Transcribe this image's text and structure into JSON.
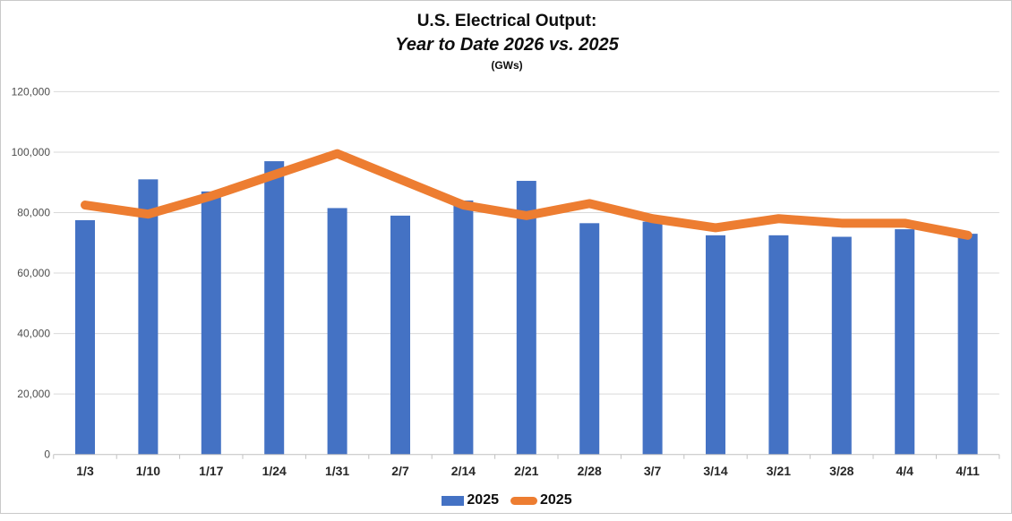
{
  "title": {
    "line1": "U.S. Electrical Output:",
    "line2": "Year to Date 2026 vs. 2025",
    "subtitle": "(GWs)"
  },
  "legend": {
    "items": [
      {
        "label": "2025",
        "swatch": "bar",
        "color": "#4472C4"
      },
      {
        "label": "2025",
        "swatch": "line",
        "color": "#ED7D31"
      }
    ],
    "position": "bottom"
  },
  "chart_data": {
    "type": "bar",
    "title": "U.S. Electrical Output: Year to Date 2026 vs. 2025 (GWs)",
    "categories": [
      "1/3",
      "1/10",
      "1/17",
      "1/24",
      "1/31",
      "2/7",
      "2/14",
      "2/21",
      "2/28",
      "3/7",
      "3/14",
      "3/21",
      "3/28",
      "4/4",
      "4/11"
    ],
    "series": [
      {
        "name": "2025",
        "type": "bar",
        "color": "#4472C4",
        "values": [
          77500,
          91000,
          87000,
          97000,
          81500,
          79000,
          84000,
          90500,
          76500,
          77000,
          72500,
          72500,
          72000,
          74500,
          73000
        ]
      },
      {
        "name": "2025",
        "type": "line",
        "color": "#ED7D31",
        "values": [
          82500,
          79500,
          85500,
          92500,
          99500,
          91000,
          82500,
          79000,
          83000,
          78000,
          75000,
          78000,
          76500,
          76500,
          72500
        ]
      }
    ],
    "xlabel": "",
    "ylabel": "",
    "ylim": [
      0,
      120000
    ],
    "yticks": {
      "values": [
        0,
        20000,
        40000,
        60000,
        80000,
        100000,
        120000
      ],
      "labels": [
        "0",
        "20,000",
        "40,000",
        "60,000",
        "80,000",
        "100,000",
        "120,000"
      ]
    },
    "grid": true,
    "legend_position": "bottom"
  },
  "colors": {
    "bar": "#4472C4",
    "line": "#ED7D31",
    "gridline": "#d9d9d9",
    "axis": "#c0c0c0",
    "ytick_text": "#4d4d4d",
    "xtick_text": "#262626",
    "frame_border": "#c9c9c9"
  }
}
